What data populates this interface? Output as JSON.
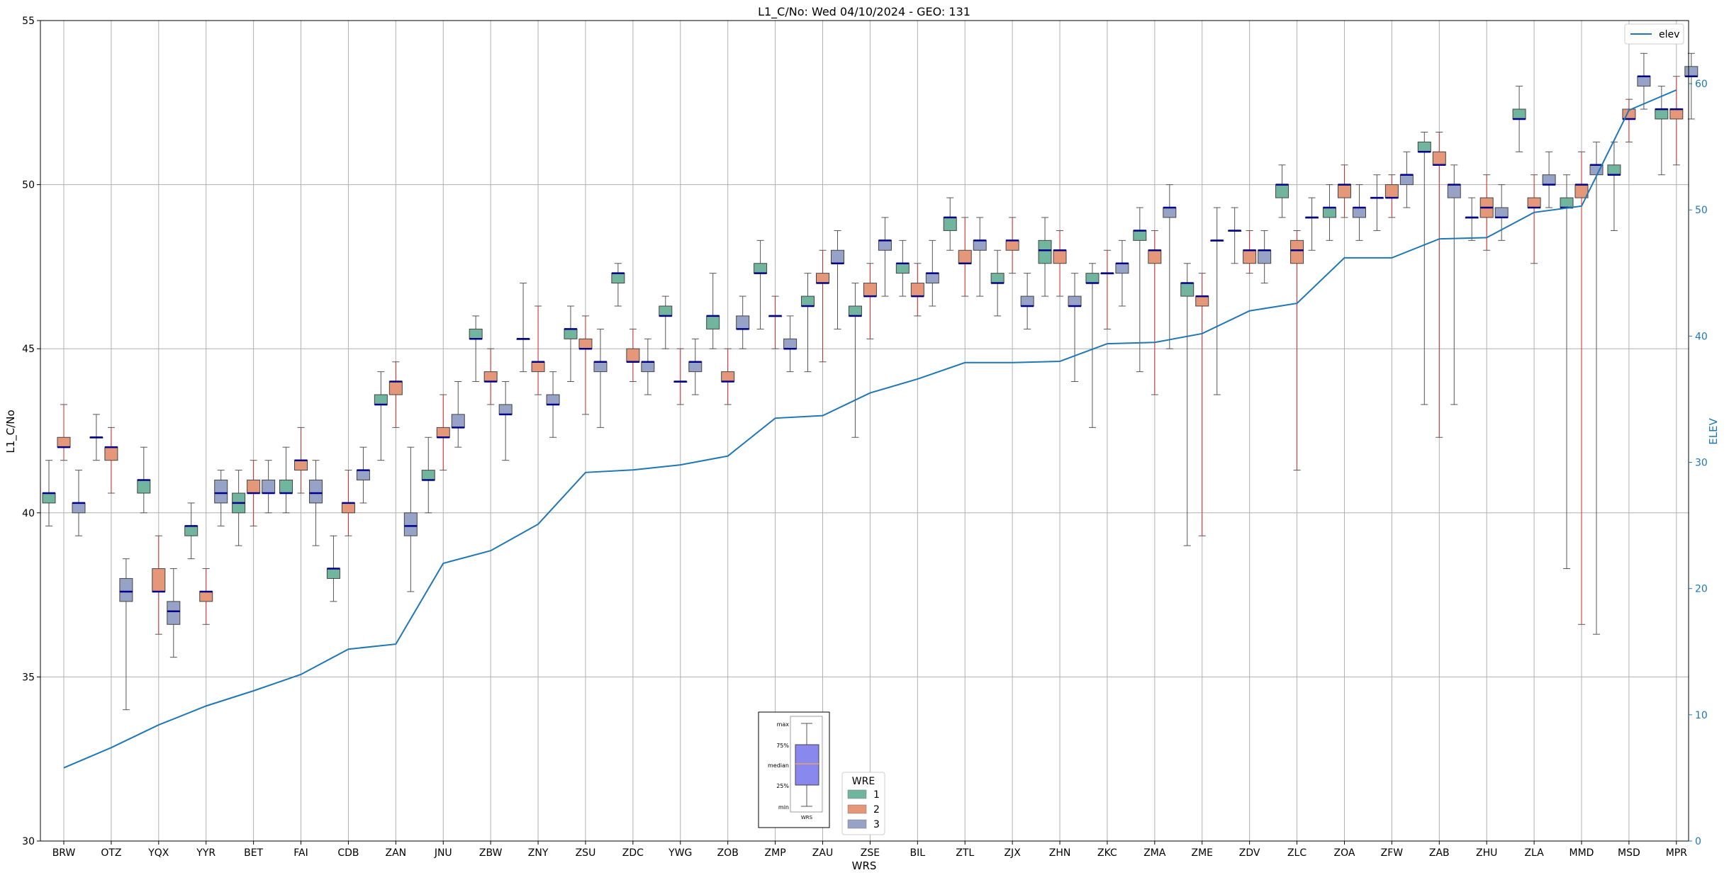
{
  "chart_data": {
    "type": "box",
    "title": "L1_C/No: Wed 04/10/2024 - GEO: 131",
    "xlabel": "WRS",
    "ylabel": "L1_C/No",
    "y2label": "ELEV",
    "ylim": [
      30,
      55
    ],
    "y2lim": [
      0,
      65
    ],
    "yticks": [
      30,
      35,
      40,
      45,
      50,
      55
    ],
    "y2ticks": [
      0,
      10,
      20,
      30,
      40,
      50,
      60
    ],
    "grid": true,
    "categories": [
      "BRW",
      "OTZ",
      "YQX",
      "YYR",
      "BET",
      "FAI",
      "CDB",
      "ZAN",
      "JNU",
      "ZBW",
      "ZNY",
      "ZSU",
      "ZDC",
      "YWG",
      "ZOB",
      "ZMP",
      "ZAU",
      "ZSE",
      "BIL",
      "ZTL",
      "ZJX",
      "ZHN",
      "ZKC",
      "ZMA",
      "ZME",
      "ZDV",
      "ZLC",
      "ZOA",
      "ZFW",
      "ZAB",
      "ZHU",
      "ZLA",
      "MMD",
      "MSD",
      "MPR"
    ],
    "series_colors": {
      "1": "#72b59e",
      "2": "#e5977a",
      "3": "#96a3c7"
    },
    "legend": {
      "title": "WRE",
      "entries": [
        "1",
        "2",
        "3"
      ],
      "placement": "bottom-center"
    },
    "line_legend": {
      "label": "elev",
      "color": "#1f77b4",
      "placement": "top-right"
    },
    "elev_line": [
      5.8,
      7.4,
      9.2,
      10.7,
      11.9,
      13.2,
      15.2,
      15.6,
      22.0,
      23.0,
      25.1,
      29.2,
      29.4,
      29.8,
      30.5,
      33.5,
      33.7,
      35.5,
      36.6,
      37.9,
      37.9,
      38.0,
      39.4,
      39.5,
      40.2,
      42.0,
      42.6,
      46.2,
      46.2,
      47.7,
      47.8,
      49.8,
      50.3,
      57.9,
      59.5
    ],
    "boxes": [
      {
        "wrs": "BRW",
        "wre": "1",
        "min": 39.6,
        "q1": 40.3,
        "median": 40.6,
        "q3": 40.6,
        "max": 41.6
      },
      {
        "wrs": "BRW",
        "wre": "2",
        "min": 41.6,
        "q1": 42.0,
        "median": 42.0,
        "q3": 42.3,
        "max": 43.3
      },
      {
        "wrs": "BRW",
        "wre": "3",
        "min": 39.3,
        "q1": 40.0,
        "median": 40.3,
        "q3": 40.3,
        "max": 41.3
      },
      {
        "wrs": "OTZ",
        "wre": "1",
        "min": 41.6,
        "q1": 42.3,
        "median": 42.3,
        "q3": 42.3,
        "max": 43.0
      },
      {
        "wrs": "OTZ",
        "wre": "2",
        "min": 40.6,
        "q1": 41.6,
        "median": 42.0,
        "q3": 42.0,
        "max": 42.6
      },
      {
        "wrs": "OTZ",
        "wre": "3",
        "min": 34.0,
        "q1": 37.3,
        "median": 37.6,
        "q3": 38.0,
        "max": 38.6
      },
      {
        "wrs": "YQX",
        "wre": "1",
        "min": 40.0,
        "q1": 40.6,
        "median": 41.0,
        "q3": 41.0,
        "max": 42.0
      },
      {
        "wrs": "YQX",
        "wre": "2",
        "min": 36.3,
        "q1": 37.6,
        "median": 37.6,
        "q3": 38.3,
        "max": 39.3
      },
      {
        "wrs": "YQX",
        "wre": "3",
        "min": 35.6,
        "q1": 36.6,
        "median": 37.0,
        "q3": 37.3,
        "max": 38.3
      },
      {
        "wrs": "YYR",
        "wre": "1",
        "min": 38.6,
        "q1": 39.3,
        "median": 39.6,
        "q3": 39.6,
        "max": 40.3
      },
      {
        "wrs": "YYR",
        "wre": "2",
        "min": 36.6,
        "q1": 37.3,
        "median": 37.6,
        "q3": 37.6,
        "max": 38.3
      },
      {
        "wrs": "YYR",
        "wre": "3",
        "min": 39.6,
        "q1": 40.3,
        "median": 40.6,
        "q3": 41.0,
        "max": 41.3
      },
      {
        "wrs": "BET",
        "wre": "1",
        "min": 39.0,
        "q1": 40.0,
        "median": 40.3,
        "q3": 40.6,
        "max": 41.3
      },
      {
        "wrs": "BET",
        "wre": "2",
        "min": 39.6,
        "q1": 40.6,
        "median": 40.6,
        "q3": 41.0,
        "max": 41.6
      },
      {
        "wrs": "BET",
        "wre": "3",
        "min": 40.0,
        "q1": 40.6,
        "median": 40.6,
        "q3": 41.0,
        "max": 41.6
      },
      {
        "wrs": "FAI",
        "wre": "1",
        "min": 40.0,
        "q1": 40.6,
        "median": 40.6,
        "q3": 41.0,
        "max": 42.0
      },
      {
        "wrs": "FAI",
        "wre": "2",
        "min": 40.6,
        "q1": 41.3,
        "median": 41.6,
        "q3": 41.6,
        "max": 42.6
      },
      {
        "wrs": "FAI",
        "wre": "3",
        "min": 39.0,
        "q1": 40.3,
        "median": 40.6,
        "q3": 41.0,
        "max": 41.6
      },
      {
        "wrs": "CDB",
        "wre": "1",
        "min": 37.3,
        "q1": 38.0,
        "median": 38.3,
        "q3": 38.3,
        "max": 39.3
      },
      {
        "wrs": "CDB",
        "wre": "2",
        "min": 39.3,
        "q1": 40.0,
        "median": 40.3,
        "q3": 40.3,
        "max": 41.3
      },
      {
        "wrs": "CDB",
        "wre": "3",
        "min": 40.3,
        "q1": 41.0,
        "median": 41.3,
        "q3": 41.3,
        "max": 42.0
      },
      {
        "wrs": "ZAN",
        "wre": "1",
        "min": 41.6,
        "q1": 43.3,
        "median": 43.3,
        "q3": 43.6,
        "max": 44.3
      },
      {
        "wrs": "ZAN",
        "wre": "2",
        "min": 42.6,
        "q1": 43.6,
        "median": 44.0,
        "q3": 44.0,
        "max": 44.6
      },
      {
        "wrs": "ZAN",
        "wre": "3",
        "min": 37.6,
        "q1": 39.3,
        "median": 39.6,
        "q3": 40.0,
        "max": 42.0
      },
      {
        "wrs": "JNU",
        "wre": "1",
        "min": 40.0,
        "q1": 41.0,
        "median": 41.0,
        "q3": 41.3,
        "max": 42.3
      },
      {
        "wrs": "JNU",
        "wre": "2",
        "min": 41.3,
        "q1": 42.3,
        "median": 42.3,
        "q3": 42.6,
        "max": 43.6
      },
      {
        "wrs": "JNU",
        "wre": "3",
        "min": 42.0,
        "q1": 42.6,
        "median": 42.6,
        "q3": 43.0,
        "max": 44.0
      },
      {
        "wrs": "ZBW",
        "wre": "1",
        "min": 44.0,
        "q1": 45.3,
        "median": 45.3,
        "q3": 45.6,
        "max": 46.0
      },
      {
        "wrs": "ZBW",
        "wre": "2",
        "min": 43.3,
        "q1": 44.0,
        "median": 44.0,
        "q3": 44.3,
        "max": 45.0
      },
      {
        "wrs": "ZBW",
        "wre": "3",
        "min": 41.6,
        "q1": 43.0,
        "median": 43.0,
        "q3": 43.3,
        "max": 44.0
      },
      {
        "wrs": "ZNY",
        "wre": "1",
        "min": 44.3,
        "q1": 45.3,
        "median": 45.3,
        "q3": 45.3,
        "max": 47.0
      },
      {
        "wrs": "ZNY",
        "wre": "2",
        "min": 43.6,
        "q1": 44.3,
        "median": 44.6,
        "q3": 44.6,
        "max": 46.3
      },
      {
        "wrs": "ZNY",
        "wre": "3",
        "min": 42.3,
        "q1": 43.3,
        "median": 43.3,
        "q3": 43.6,
        "max": 44.3
      },
      {
        "wrs": "ZSU",
        "wre": "1",
        "min": 44.0,
        "q1": 45.3,
        "median": 45.6,
        "q3": 45.6,
        "max": 46.3
      },
      {
        "wrs": "ZSU",
        "wre": "2",
        "min": 43.0,
        "q1": 45.0,
        "median": 45.0,
        "q3": 45.3,
        "max": 46.0
      },
      {
        "wrs": "ZSU",
        "wre": "3",
        "min": 42.6,
        "q1": 44.3,
        "median": 44.6,
        "q3": 44.6,
        "max": 45.6
      },
      {
        "wrs": "ZDC",
        "wre": "1",
        "min": 46.3,
        "q1": 47.0,
        "median": 47.3,
        "q3": 47.3,
        "max": 47.6
      },
      {
        "wrs": "ZDC",
        "wre": "2",
        "min": 44.0,
        "q1": 44.6,
        "median": 44.6,
        "q3": 45.0,
        "max": 45.6
      },
      {
        "wrs": "ZDC",
        "wre": "3",
        "min": 43.6,
        "q1": 44.3,
        "median": 44.6,
        "q3": 44.6,
        "max": 45.3
      },
      {
        "wrs": "YWG",
        "wre": "1",
        "min": 45.0,
        "q1": 46.0,
        "median": 46.0,
        "q3": 46.3,
        "max": 46.6
      },
      {
        "wrs": "YWG",
        "wre": "2",
        "min": 43.3,
        "q1": 44.0,
        "median": 44.0,
        "q3": 44.0,
        "max": 45.0
      },
      {
        "wrs": "YWG",
        "wre": "3",
        "min": 43.6,
        "q1": 44.3,
        "median": 44.6,
        "q3": 44.6,
        "max": 45.3
      },
      {
        "wrs": "ZOB",
        "wre": "1",
        "min": 45.0,
        "q1": 45.6,
        "median": 46.0,
        "q3": 46.0,
        "max": 47.3
      },
      {
        "wrs": "ZOB",
        "wre": "2",
        "min": 43.3,
        "q1": 44.0,
        "median": 44.0,
        "q3": 44.3,
        "max": 45.0
      },
      {
        "wrs": "ZOB",
        "wre": "3",
        "min": 45.0,
        "q1": 45.6,
        "median": 45.6,
        "q3": 46.0,
        "max": 46.6
      },
      {
        "wrs": "ZMP",
        "wre": "1",
        "min": 45.6,
        "q1": 47.3,
        "median": 47.3,
        "q3": 47.6,
        "max": 48.3
      },
      {
        "wrs": "ZMP",
        "wre": "2",
        "min": 45.0,
        "q1": 46.0,
        "median": 46.0,
        "q3": 46.0,
        "max": 46.6
      },
      {
        "wrs": "ZMP",
        "wre": "3",
        "min": 44.3,
        "q1": 45.0,
        "median": 45.0,
        "q3": 45.3,
        "max": 46.0
      },
      {
        "wrs": "ZAU",
        "wre": "1",
        "min": 44.3,
        "q1": 46.3,
        "median": 46.3,
        "q3": 46.6,
        "max": 47.3
      },
      {
        "wrs": "ZAU",
        "wre": "2",
        "min": 44.6,
        "q1": 47.0,
        "median": 47.0,
        "q3": 47.3,
        "max": 48.0
      },
      {
        "wrs": "ZAU",
        "wre": "3",
        "min": 45.6,
        "q1": 47.6,
        "median": 47.6,
        "q3": 48.0,
        "max": 48.6
      },
      {
        "wrs": "ZSE",
        "wre": "1",
        "min": 42.3,
        "q1": 46.0,
        "median": 46.0,
        "q3": 46.3,
        "max": 47.0
      },
      {
        "wrs": "ZSE",
        "wre": "2",
        "min": 45.3,
        "q1": 46.6,
        "median": 46.6,
        "q3": 47.0,
        "max": 47.6
      },
      {
        "wrs": "ZSE",
        "wre": "3",
        "min": 46.6,
        "q1": 48.0,
        "median": 48.3,
        "q3": 48.3,
        "max": 49.0
      },
      {
        "wrs": "BIL",
        "wre": "1",
        "min": 46.6,
        "q1": 47.3,
        "median": 47.6,
        "q3": 47.6,
        "max": 48.3
      },
      {
        "wrs": "BIL",
        "wre": "2",
        "min": 46.0,
        "q1": 46.6,
        "median": 46.6,
        "q3": 47.0,
        "max": 47.6
      },
      {
        "wrs": "BIL",
        "wre": "3",
        "min": 46.3,
        "q1": 47.0,
        "median": 47.3,
        "q3": 47.3,
        "max": 48.3
      },
      {
        "wrs": "ZTL",
        "wre": "1",
        "min": 48.0,
        "q1": 48.6,
        "median": 49.0,
        "q3": 49.0,
        "max": 49.6
      },
      {
        "wrs": "ZTL",
        "wre": "2",
        "min": 46.6,
        "q1": 47.6,
        "median": 47.6,
        "q3": 48.0,
        "max": 49.0
      },
      {
        "wrs": "ZTL",
        "wre": "3",
        "min": 46.6,
        "q1": 48.0,
        "median": 48.3,
        "q3": 48.3,
        "max": 49.0
      },
      {
        "wrs": "ZJX",
        "wre": "1",
        "min": 46.0,
        "q1": 47.0,
        "median": 47.0,
        "q3": 47.3,
        "max": 48.0
      },
      {
        "wrs": "ZJX",
        "wre": "2",
        "min": 47.3,
        "q1": 48.0,
        "median": 48.3,
        "q3": 48.3,
        "max": 49.0
      },
      {
        "wrs": "ZJX",
        "wre": "3",
        "min": 45.6,
        "q1": 46.3,
        "median": 46.3,
        "q3": 46.6,
        "max": 47.3
      },
      {
        "wrs": "ZHN",
        "wre": "1",
        "min": 46.6,
        "q1": 47.6,
        "median": 48.0,
        "q3": 48.3,
        "max": 49.0
      },
      {
        "wrs": "ZHN",
        "wre": "2",
        "min": 46.6,
        "q1": 47.6,
        "median": 48.0,
        "q3": 48.0,
        "max": 48.6
      },
      {
        "wrs": "ZHN",
        "wre": "3",
        "min": 44.0,
        "q1": 46.3,
        "median": 46.3,
        "q3": 46.6,
        "max": 47.3
      },
      {
        "wrs": "ZKC",
        "wre": "1",
        "min": 42.6,
        "q1": 47.0,
        "median": 47.0,
        "q3": 47.3,
        "max": 47.6
      },
      {
        "wrs": "ZKC",
        "wre": "2",
        "min": 45.6,
        "q1": 47.3,
        "median": 47.3,
        "q3": 47.3,
        "max": 48.0
      },
      {
        "wrs": "ZKC",
        "wre": "3",
        "min": 46.3,
        "q1": 47.3,
        "median": 47.6,
        "q3": 47.6,
        "max": 48.3
      },
      {
        "wrs": "ZMA",
        "wre": "1",
        "min": 44.3,
        "q1": 48.3,
        "median": 48.6,
        "q3": 48.6,
        "max": 49.3
      },
      {
        "wrs": "ZMA",
        "wre": "2",
        "min": 43.6,
        "q1": 47.6,
        "median": 48.0,
        "q3": 48.0,
        "max": 48.6
      },
      {
        "wrs": "ZMA",
        "wre": "3",
        "min": 45.0,
        "q1": 49.0,
        "median": 49.3,
        "q3": 49.3,
        "max": 50.0
      },
      {
        "wrs": "ZME",
        "wre": "1",
        "min": 39.0,
        "q1": 46.6,
        "median": 47.0,
        "q3": 47.0,
        "max": 47.6
      },
      {
        "wrs": "ZME",
        "wre": "2",
        "min": 39.3,
        "q1": 46.3,
        "median": 46.6,
        "q3": 46.6,
        "max": 47.3
      },
      {
        "wrs": "ZME",
        "wre": "3",
        "min": 43.6,
        "q1": 48.3,
        "median": 48.3,
        "q3": 48.3,
        "max": 49.3
      },
      {
        "wrs": "ZDV",
        "wre": "1",
        "min": 47.6,
        "q1": 48.6,
        "median": 48.6,
        "q3": 48.6,
        "max": 49.3
      },
      {
        "wrs": "ZDV",
        "wre": "2",
        "min": 47.3,
        "q1": 47.6,
        "median": 48.0,
        "q3": 48.0,
        "max": 48.6
      },
      {
        "wrs": "ZDV",
        "wre": "3",
        "min": 47.0,
        "q1": 47.6,
        "median": 48.0,
        "q3": 48.0,
        "max": 48.6
      },
      {
        "wrs": "ZLC",
        "wre": "1",
        "min": 49.0,
        "q1": 49.6,
        "median": 50.0,
        "q3": 50.0,
        "max": 50.6
      },
      {
        "wrs": "ZLC",
        "wre": "2",
        "min": 41.3,
        "q1": 47.6,
        "median": 48.0,
        "q3": 48.3,
        "max": 48.6
      },
      {
        "wrs": "ZLC",
        "wre": "3",
        "min": 48.0,
        "q1": 49.0,
        "median": 49.0,
        "q3": 49.0,
        "max": 49.6
      },
      {
        "wrs": "ZOA",
        "wre": "1",
        "min": 48.3,
        "q1": 49.0,
        "median": 49.3,
        "q3": 49.3,
        "max": 50.0
      },
      {
        "wrs": "ZOA",
        "wre": "2",
        "min": 49.0,
        "q1": 49.6,
        "median": 50.0,
        "q3": 50.0,
        "max": 50.6
      },
      {
        "wrs": "ZOA",
        "wre": "3",
        "min": 48.3,
        "q1": 49.0,
        "median": 49.3,
        "q3": 49.3,
        "max": 50.0
      },
      {
        "wrs": "ZFW",
        "wre": "1",
        "min": 48.6,
        "q1": 49.6,
        "median": 49.6,
        "q3": 49.6,
        "max": 50.3
      },
      {
        "wrs": "ZFW",
        "wre": "2",
        "min": 49.0,
        "q1": 49.6,
        "median": 49.6,
        "q3": 50.0,
        "max": 50.3
      },
      {
        "wrs": "ZFW",
        "wre": "3",
        "min": 49.3,
        "q1": 50.0,
        "median": 50.3,
        "q3": 50.3,
        "max": 51.0
      },
      {
        "wrs": "ZAB",
        "wre": "1",
        "min": 43.3,
        "q1": 51.0,
        "median": 51.0,
        "q3": 51.3,
        "max": 51.6
      },
      {
        "wrs": "ZAB",
        "wre": "2",
        "min": 42.3,
        "q1": 50.6,
        "median": 50.6,
        "q3": 51.0,
        "max": 51.6
      },
      {
        "wrs": "ZAB",
        "wre": "3",
        "min": 43.3,
        "q1": 49.6,
        "median": 50.0,
        "q3": 50.0,
        "max": 50.6
      },
      {
        "wrs": "ZHU",
        "wre": "1",
        "min": 48.3,
        "q1": 49.0,
        "median": 49.0,
        "q3": 49.0,
        "max": 49.6
      },
      {
        "wrs": "ZHU",
        "wre": "2",
        "min": 48.0,
        "q1": 49.0,
        "median": 49.3,
        "q3": 49.6,
        "max": 50.3
      },
      {
        "wrs": "ZHU",
        "wre": "3",
        "min": 48.3,
        "q1": 49.0,
        "median": 49.0,
        "q3": 49.3,
        "max": 50.0
      },
      {
        "wrs": "ZLA",
        "wre": "1",
        "min": 51.0,
        "q1": 52.0,
        "median": 52.0,
        "q3": 52.3,
        "max": 53.0
      },
      {
        "wrs": "ZLA",
        "wre": "2",
        "min": 47.6,
        "q1": 49.3,
        "median": 49.3,
        "q3": 49.6,
        "max": 50.3
      },
      {
        "wrs": "ZLA",
        "wre": "3",
        "min": 49.3,
        "q1": 50.0,
        "median": 50.0,
        "q3": 50.3,
        "max": 51.0
      },
      {
        "wrs": "MMD",
        "wre": "1",
        "min": 38.3,
        "q1": 49.3,
        "median": 49.3,
        "q3": 49.6,
        "max": 50.3
      },
      {
        "wrs": "MMD",
        "wre": "2",
        "min": 36.6,
        "q1": 49.6,
        "median": 50.0,
        "q3": 50.0,
        "max": 51.0
      },
      {
        "wrs": "MMD",
        "wre": "3",
        "min": 36.3,
        "q1": 50.3,
        "median": 50.6,
        "q3": 50.6,
        "max": 51.3
      },
      {
        "wrs": "MSD",
        "wre": "1",
        "min": 48.6,
        "q1": 50.3,
        "median": 50.3,
        "q3": 50.6,
        "max": 51.3
      },
      {
        "wrs": "MSD",
        "wre": "2",
        "min": 51.3,
        "q1": 52.0,
        "median": 52.0,
        "q3": 52.3,
        "max": 52.6
      },
      {
        "wrs": "MSD",
        "wre": "3",
        "min": 52.3,
        "q1": 53.0,
        "median": 53.3,
        "q3": 53.3,
        "max": 54.0
      },
      {
        "wrs": "MPR",
        "wre": "1",
        "min": 50.3,
        "q1": 52.0,
        "median": 52.3,
        "q3": 52.3,
        "max": 53.0
      },
      {
        "wrs": "MPR",
        "wre": "2",
        "min": 50.6,
        "q1": 52.0,
        "median": 52.3,
        "q3": 52.3,
        "max": 53.3
      },
      {
        "wrs": "MPR",
        "wre": "3",
        "min": 52.0,
        "q1": 53.3,
        "median": 53.3,
        "q3": 53.6,
        "max": 54.0
      }
    ],
    "key_box": {
      "labels": [
        "max",
        "75%",
        "median",
        "25%",
        "min"
      ],
      "xlabel": "WRS"
    }
  }
}
